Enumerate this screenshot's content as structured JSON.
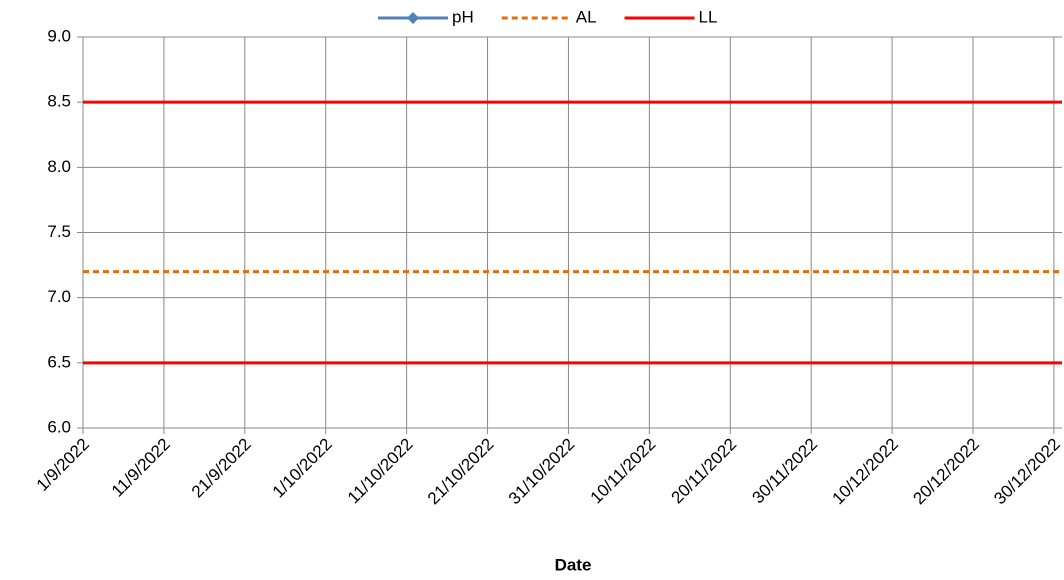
{
  "chart_data": {
    "type": "line",
    "x_label": "Date",
    "x": [
      "1/9/2022",
      "31/12/2022"
    ],
    "series": [
      {
        "name": "pH",
        "color": "#4f81bd",
        "values": [
          null,
          null
        ],
        "marker": "diamond"
      },
      {
        "name": "AL",
        "color": "#e46c0a",
        "values": [
          7.2,
          7.2
        ],
        "dash": true
      },
      {
        "name": "LL",
        "color": "#ff0000",
        "values": [
          6.5,
          6.5
        ]
      },
      {
        "color": "#ff0000",
        "values": [
          8.5,
          8.5
        ]
      }
    ],
    "xlim": [
      "1/9/2022",
      "31/12/2022"
    ],
    "xticks": [
      "1/9/2022",
      "11/9/2022",
      "21/9/2022",
      "1/10/2022",
      "11/10/2022",
      "21/10/2022",
      "31/10/2022",
      "10/11/2022",
      "20/11/2022",
      "30/11/2022",
      "10/12/2022",
      "20/12/2022",
      "30/12/2022"
    ],
    "ylim": [
      6,
      9
    ],
    "yticks": [
      {
        "value": 6,
        "label": "6.0"
      },
      {
        "value": 6.5,
        "label": "6.5"
      },
      {
        "value": 7,
        "label": "7.0"
      },
      {
        "value": 7.5,
        "label": "7.5"
      },
      {
        "value": 8,
        "label": "8.0"
      },
      {
        "value": 8.5,
        "label": "8.5"
      },
      {
        "value": 9,
        "label": "9.0"
      }
    ],
    "grid": true,
    "legend": "top"
  }
}
